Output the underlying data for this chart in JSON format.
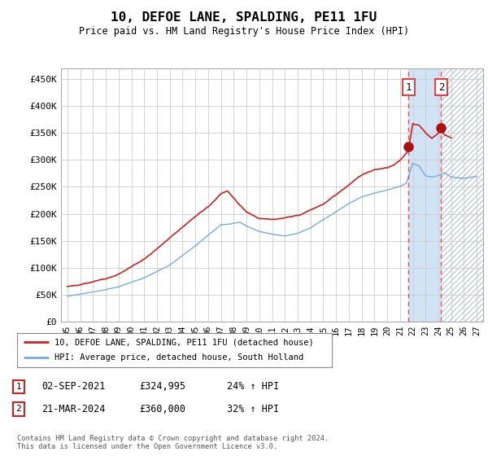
{
  "title": "10, DEFOE LANE, SPALDING, PE11 1FU",
  "subtitle": "Price paid vs. HM Land Registry's House Price Index (HPI)",
  "ylabel_ticks": [
    "£0",
    "£50K",
    "£100K",
    "£150K",
    "£200K",
    "£250K",
    "£300K",
    "£350K",
    "£400K",
    "£450K"
  ],
  "ytick_values": [
    0,
    50000,
    100000,
    150000,
    200000,
    250000,
    300000,
    350000,
    400000,
    450000
  ],
  "ylim": [
    0,
    470000
  ],
  "xlim_start": 1994.5,
  "xlim_end": 2027.5,
  "hpi_color": "#7aaadd",
  "price_color": "#cc2222",
  "marker_color": "#aa1111",
  "vline_color": "#dd4444",
  "shade_color": "#d0e4f5",
  "hatch_color": "#ccddee",
  "grid_color": "#cccccc",
  "background_color": "#ffffff",
  "plot_bg_color": "#ffffff",
  "legend_label_price": "10, DEFOE LANE, SPALDING, PE11 1FU (detached house)",
  "legend_label_hpi": "HPI: Average price, detached house, South Holland",
  "event1_date": "02-SEP-2021",
  "event1_price": "£324,995",
  "event1_pct": "24% ↑ HPI",
  "event1_x": 2021.67,
  "event1_y": 324995,
  "event2_date": "21-MAR-2024",
  "event2_price": "£360,000",
  "event2_pct": "32% ↑ HPI",
  "event2_x": 2024.22,
  "event2_y": 360000,
  "footnote": "Contains HM Land Registry data © Crown copyright and database right 2024.\nThis data is licensed under the Open Government Licence v3.0.",
  "xtick_years": [
    1995,
    1996,
    1997,
    1998,
    1999,
    2000,
    2001,
    2002,
    2003,
    2004,
    2005,
    2006,
    2007,
    2008,
    2009,
    2010,
    2011,
    2012,
    2013,
    2014,
    2015,
    2016,
    2017,
    2018,
    2019,
    2020,
    2021,
    2022,
    2023,
    2024,
    2025,
    2026,
    2027
  ]
}
